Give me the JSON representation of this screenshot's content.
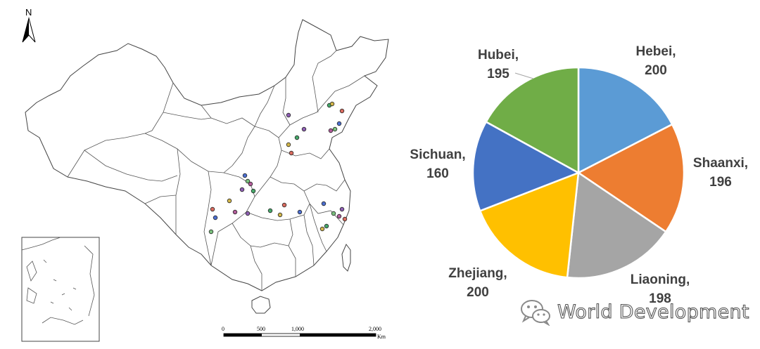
{
  "map": {
    "north_label": "N",
    "scale_bar": {
      "ticks": [
        "0",
        "500",
        "1,000",
        "2,000"
      ],
      "unit": "Km"
    },
    "sample_site_colors": [
      "#8e5fb3",
      "#46a86a",
      "#d2b64a",
      "#d96b5f",
      "#4c6fd1",
      "#7bc17e",
      "#b25c9a"
    ]
  },
  "chart_data": {
    "type": "pie",
    "title": "",
    "series": [
      {
        "values": [
          200,
          196,
          198,
          200,
          160,
          195
        ]
      }
    ],
    "categories": [
      "Hebei",
      "Shaanxi",
      "Liaoning",
      "Zhejiang",
      "Sichuan",
      "Hubei"
    ],
    "values": [
      200,
      196,
      198,
      200,
      160,
      195
    ],
    "colors": [
      "#5b9bd5",
      "#ed7d31",
      "#a5a5a5",
      "#ffc000",
      "#4472c4",
      "#70ad47"
    ],
    "slice_border_color": "#ffffff",
    "start_angle_deg": 0,
    "direction": "clockwise"
  },
  "watermark": {
    "text": "World Development",
    "icon": "wechat-icon"
  }
}
